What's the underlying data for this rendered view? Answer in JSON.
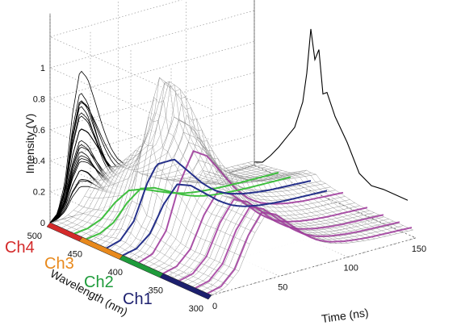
{
  "chart_data": {
    "type": "surface3d",
    "zlabel": "Intensity (V)",
    "xlabel": "Time (ns)",
    "ylabel": "Wavelength (nm)",
    "z_ticks": [
      "0",
      "0.2",
      "0.4",
      "0.6",
      "0.8",
      "1"
    ],
    "time_ticks": [
      "0",
      "50",
      "100",
      "150"
    ],
    "wavelength_ticks": [
      "300",
      "350",
      "400",
      "450",
      "500"
    ],
    "zlim": [
      0,
      1
    ],
    "time_range": [
      0,
      150
    ],
    "wavelength_range": [
      300,
      500
    ],
    "grid": true,
    "channels": [
      {
        "name": "Ch4",
        "color": "#d42a2a",
        "wavelength_band": [
          460,
          500
        ]
      },
      {
        "name": "Ch3",
        "color": "#e8891c",
        "wavelength_band": [
          410,
          460
        ]
      },
      {
        "name": "Ch2",
        "color": "#1e9b3b",
        "wavelength_band": [
          360,
          410
        ]
      },
      {
        "name": "Ch1",
        "color": "#1c1f6e",
        "wavelength_band": [
          300,
          360
        ]
      }
    ],
    "series_colors": {
      "ch2": "#3fbf3f",
      "ch1": "#25308a",
      "highlight": "#a0389c",
      "mesh": "#777777"
    },
    "highlight_wavelengths": [
      305,
      320,
      340,
      360,
      390
    ],
    "wall_curve": {
      "time": [
        0,
        10,
        20,
        30,
        40,
        50,
        55,
        60,
        65,
        70,
        75,
        80,
        85,
        90,
        100,
        110,
        120,
        130,
        140,
        150
      ],
      "intensity": [
        0,
        0.05,
        0.25,
        0.7,
        0.99,
        0.9,
        0.8,
        0.7,
        0.6,
        0.5,
        0.42,
        0.35,
        0.3,
        0.26,
        0.21,
        0.18,
        0.16,
        0.15,
        0.14,
        0.13
      ]
    },
    "projection_curve": {
      "wavelength": [
        310,
        325,
        340,
        355,
        370,
        385,
        400,
        410,
        415,
        420,
        425,
        430,
        435,
        440,
        450,
        460,
        470,
        480,
        490,
        500
      ],
      "intensity": [
        0.2,
        0.2,
        0.2,
        0.19,
        0.23,
        0.38,
        0.5,
        0.62,
        0.6,
        0.85,
        0.78,
        0.95,
        0.68,
        0.5,
        0.33,
        0.25,
        0.17,
        0.1,
        0.04,
        0.02
      ]
    }
  }
}
